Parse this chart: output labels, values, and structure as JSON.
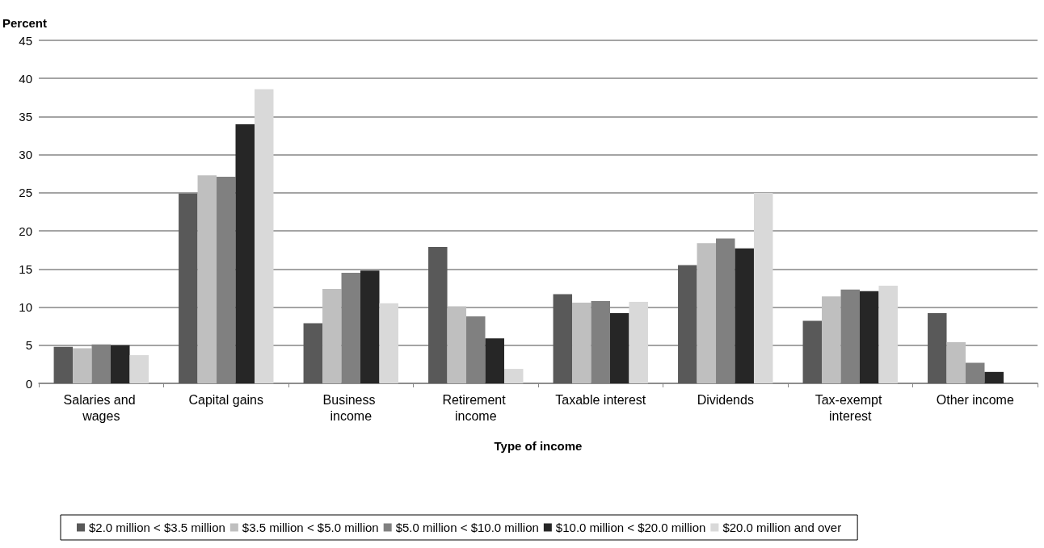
{
  "chart_data": {
    "type": "bar",
    "ylabel": "Percent",
    "xlabel": "Type of income",
    "categories": [
      "Salaries and wages",
      "Capital gains",
      "Business income",
      "Retirement income",
      "Taxable interest",
      "Dividends",
      "Tax-exempt interest",
      "Other income"
    ],
    "series": [
      {
        "name": "$2.0 million < $3.5 million",
        "color": "#595959",
        "values": [
          4.8,
          24.9,
          7.9,
          17.9,
          11.7,
          15.5,
          8.2,
          9.2
        ]
      },
      {
        "name": "$3.5 million < $5.0 million",
        "color": "#bfbfbf",
        "values": [
          4.6,
          27.3,
          12.4,
          10.1,
          10.6,
          18.4,
          11.4,
          5.4
        ]
      },
      {
        "name": "$5.0 million < $10.0 million",
        "color": "#808080",
        "values": [
          5.1,
          27.1,
          14.5,
          8.8,
          10.8,
          19.0,
          12.3,
          2.7
        ]
      },
      {
        "name": "$10.0 million < $20.0 million",
        "color": "#262626",
        "values": [
          5.0,
          34.0,
          14.8,
          5.9,
          9.2,
          17.7,
          12.1,
          1.5
        ]
      },
      {
        "name": "$20.0 million and over",
        "color": "#d9d9d9",
        "values": [
          3.7,
          38.6,
          10.5,
          1.9,
          10.7,
          25.0,
          12.8,
          0
        ]
      }
    ],
    "ylim": [
      0,
      45
    ],
    "yticks": [
      0,
      5,
      10,
      15,
      20,
      25,
      30,
      35,
      40,
      45
    ],
    "grid": "y",
    "legend": "bottom"
  }
}
